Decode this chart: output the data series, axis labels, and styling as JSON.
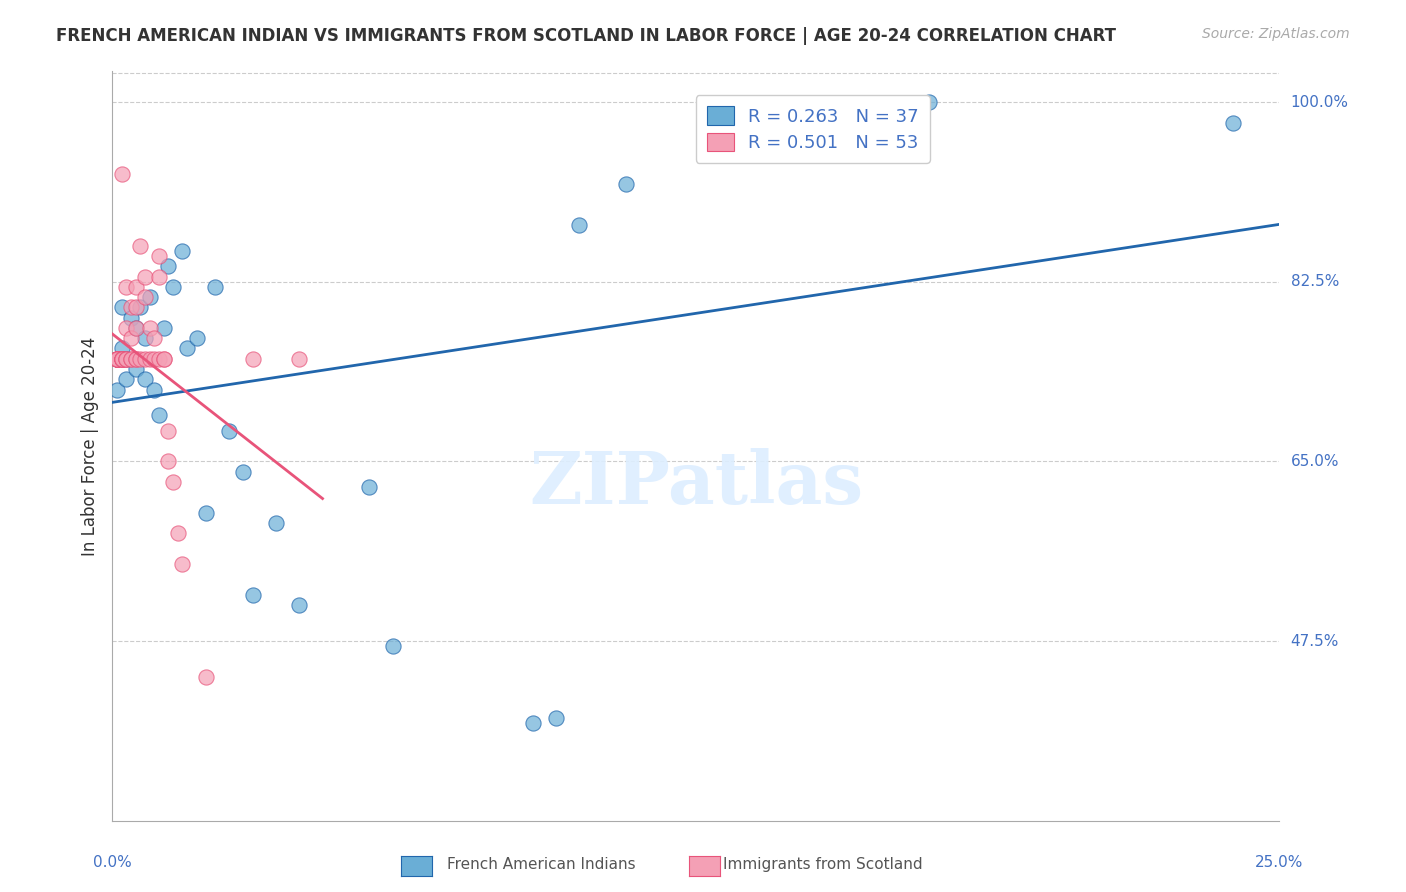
{
  "title": "FRENCH AMERICAN INDIAN VS IMMIGRANTS FROM SCOTLAND IN LABOR FORCE | AGE 20-24 CORRELATION CHART",
  "source": "Source: ZipAtlas.com",
  "ylabel": "In Labor Force | Age 20-24",
  "watermark": "ZIPatlas",
  "blue_R": 0.263,
  "blue_N": 37,
  "pink_R": 0.501,
  "pink_N": 53,
  "blue_color": "#6aaed6",
  "pink_color": "#f4a0b5",
  "blue_line_color": "#2166ac",
  "pink_line_color": "#e8547a",
  "bg_color": "#ffffff",
  "grid_color": "#cccccc",
  "title_color": "#333333",
  "axis_label_color": "#4472c4",
  "x_min": 0.0,
  "x_max": 0.25,
  "y_min": 0.3,
  "y_max": 1.03,
  "y_ticks": [
    1.0,
    0.825,
    0.65,
    0.475
  ],
  "y_tick_labels": [
    "100.0%",
    "82.5%",
    "65.0%",
    "47.5%"
  ],
  "blue_scatter_x": [
    0.001,
    0.001,
    0.002,
    0.002,
    0.003,
    0.003,
    0.004,
    0.005,
    0.005,
    0.006,
    0.007,
    0.007,
    0.008,
    0.009,
    0.01,
    0.011,
    0.012,
    0.013,
    0.015,
    0.016,
    0.018,
    0.02,
    0.022,
    0.025,
    0.028,
    0.03,
    0.035,
    0.04,
    0.055,
    0.06,
    0.09,
    0.095,
    0.1,
    0.11,
    0.16,
    0.175,
    0.24
  ],
  "blue_scatter_y": [
    0.75,
    0.72,
    0.8,
    0.76,
    0.75,
    0.73,
    0.79,
    0.78,
    0.74,
    0.8,
    0.77,
    0.73,
    0.81,
    0.72,
    0.695,
    0.78,
    0.84,
    0.82,
    0.855,
    0.76,
    0.77,
    0.6,
    0.82,
    0.68,
    0.64,
    0.52,
    0.59,
    0.51,
    0.625,
    0.47,
    0.395,
    0.4,
    0.88,
    0.92,
    0.98,
    1.0,
    0.98
  ],
  "pink_scatter_x": [
    0.001,
    0.001,
    0.001,
    0.001,
    0.001,
    0.001,
    0.001,
    0.001,
    0.001,
    0.001,
    0.002,
    0.002,
    0.002,
    0.002,
    0.002,
    0.002,
    0.002,
    0.003,
    0.003,
    0.003,
    0.003,
    0.003,
    0.004,
    0.004,
    0.004,
    0.004,
    0.005,
    0.005,
    0.005,
    0.005,
    0.005,
    0.006,
    0.006,
    0.007,
    0.007,
    0.007,
    0.008,
    0.008,
    0.009,
    0.009,
    0.01,
    0.01,
    0.01,
    0.011,
    0.011,
    0.012,
    0.012,
    0.013,
    0.014,
    0.015,
    0.02,
    0.03,
    0.04
  ],
  "pink_scatter_y": [
    0.75,
    0.75,
    0.75,
    0.75,
    0.75,
    0.75,
    0.75,
    0.75,
    0.75,
    0.75,
    0.93,
    0.75,
    0.75,
    0.75,
    0.75,
    0.75,
    0.75,
    0.82,
    0.78,
    0.75,
    0.75,
    0.75,
    0.8,
    0.77,
    0.75,
    0.75,
    0.82,
    0.8,
    0.78,
    0.75,
    0.75,
    0.86,
    0.75,
    0.83,
    0.81,
    0.75,
    0.78,
    0.75,
    0.77,
    0.75,
    0.85,
    0.83,
    0.75,
    0.75,
    0.75,
    0.68,
    0.65,
    0.63,
    0.58,
    0.55,
    0.44,
    0.75,
    0.75
  ]
}
